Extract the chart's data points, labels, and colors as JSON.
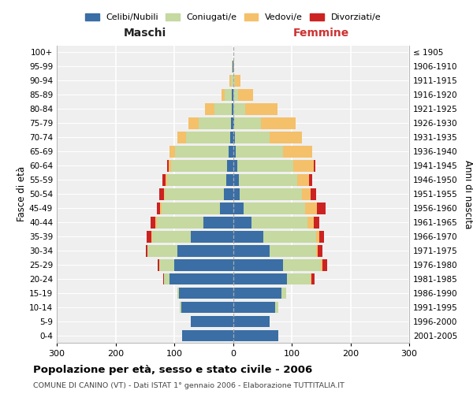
{
  "age_groups": [
    "0-4",
    "5-9",
    "10-14",
    "15-19",
    "20-24",
    "25-29",
    "30-34",
    "35-39",
    "40-44",
    "45-49",
    "50-54",
    "55-59",
    "60-64",
    "65-69",
    "70-74",
    "75-79",
    "80-84",
    "85-89",
    "90-94",
    "95-99",
    "100+"
  ],
  "birth_years": [
    "2001-2005",
    "1996-2000",
    "1991-1995",
    "1986-1990",
    "1981-1985",
    "1976-1980",
    "1971-1975",
    "1966-1970",
    "1961-1965",
    "1956-1960",
    "1951-1955",
    "1946-1950",
    "1941-1945",
    "1936-1940",
    "1931-1935",
    "1926-1930",
    "1921-1925",
    "1916-1920",
    "1911-1915",
    "1906-1910",
    "≤ 1905"
  ],
  "maschi_celibi": [
    87,
    72,
    88,
    92,
    108,
    100,
    95,
    72,
    50,
    22,
    16,
    12,
    10,
    8,
    5,
    3,
    2,
    2,
    0,
    1,
    0
  ],
  "maschi_coniugati": [
    0,
    0,
    2,
    3,
    10,
    25,
    50,
    65,
    80,
    100,
    100,
    100,
    95,
    90,
    75,
    55,
    30,
    12,
    4,
    1,
    0
  ],
  "maschi_vedovi": [
    0,
    0,
    0,
    0,
    0,
    1,
    1,
    2,
    2,
    2,
    2,
    3,
    5,
    10,
    15,
    18,
    15,
    5,
    2,
    0,
    0
  ],
  "maschi_divorziati": [
    0,
    0,
    0,
    0,
    1,
    2,
    2,
    8,
    8,
    5,
    7,
    5,
    2,
    0,
    0,
    0,
    0,
    0,
    0,
    0,
    0
  ],
  "femmine_nubili": [
    77,
    62,
    72,
    82,
    92,
    85,
    62,
    52,
    32,
    18,
    12,
    10,
    8,
    5,
    3,
    2,
    1,
    1,
    0,
    0,
    0
  ],
  "femmine_coniugate": [
    0,
    0,
    5,
    8,
    40,
    65,
    80,
    90,
    95,
    105,
    105,
    100,
    95,
    80,
    60,
    45,
    20,
    8,
    3,
    0,
    0
  ],
  "femmine_vedove": [
    0,
    0,
    0,
    0,
    2,
    2,
    2,
    5,
    10,
    20,
    15,
    20,
    35,
    50,
    55,
    60,
    55,
    25,
    10,
    2,
    0
  ],
  "femmine_divorziate": [
    0,
    0,
    0,
    0,
    5,
    8,
    8,
    8,
    10,
    15,
    10,
    5,
    2,
    0,
    0,
    0,
    0,
    0,
    0,
    0,
    0
  ],
  "colors": {
    "celibi": "#3a6ea5",
    "coniugati": "#c5d9a0",
    "vedovi": "#f5c06a",
    "divorziati": "#cc2222"
  },
  "xlim": 300,
  "title": "Popolazione per età, sesso e stato civile - 2006",
  "subtitle": "COMUNE DI CANINO (VT) - Dati ISTAT 1° gennaio 2006 - Elaborazione TUTTITALIA.IT",
  "xlabel_left": "Maschi",
  "xlabel_right": "Femmine",
  "ylabel_left": "Fasce di età",
  "ylabel_right": "Anni di nascita",
  "legend_labels": [
    "Celibi/Nubili",
    "Coniugati/e",
    "Vedovi/e",
    "Divorziati/e"
  ],
  "bg_color": "#efefef"
}
